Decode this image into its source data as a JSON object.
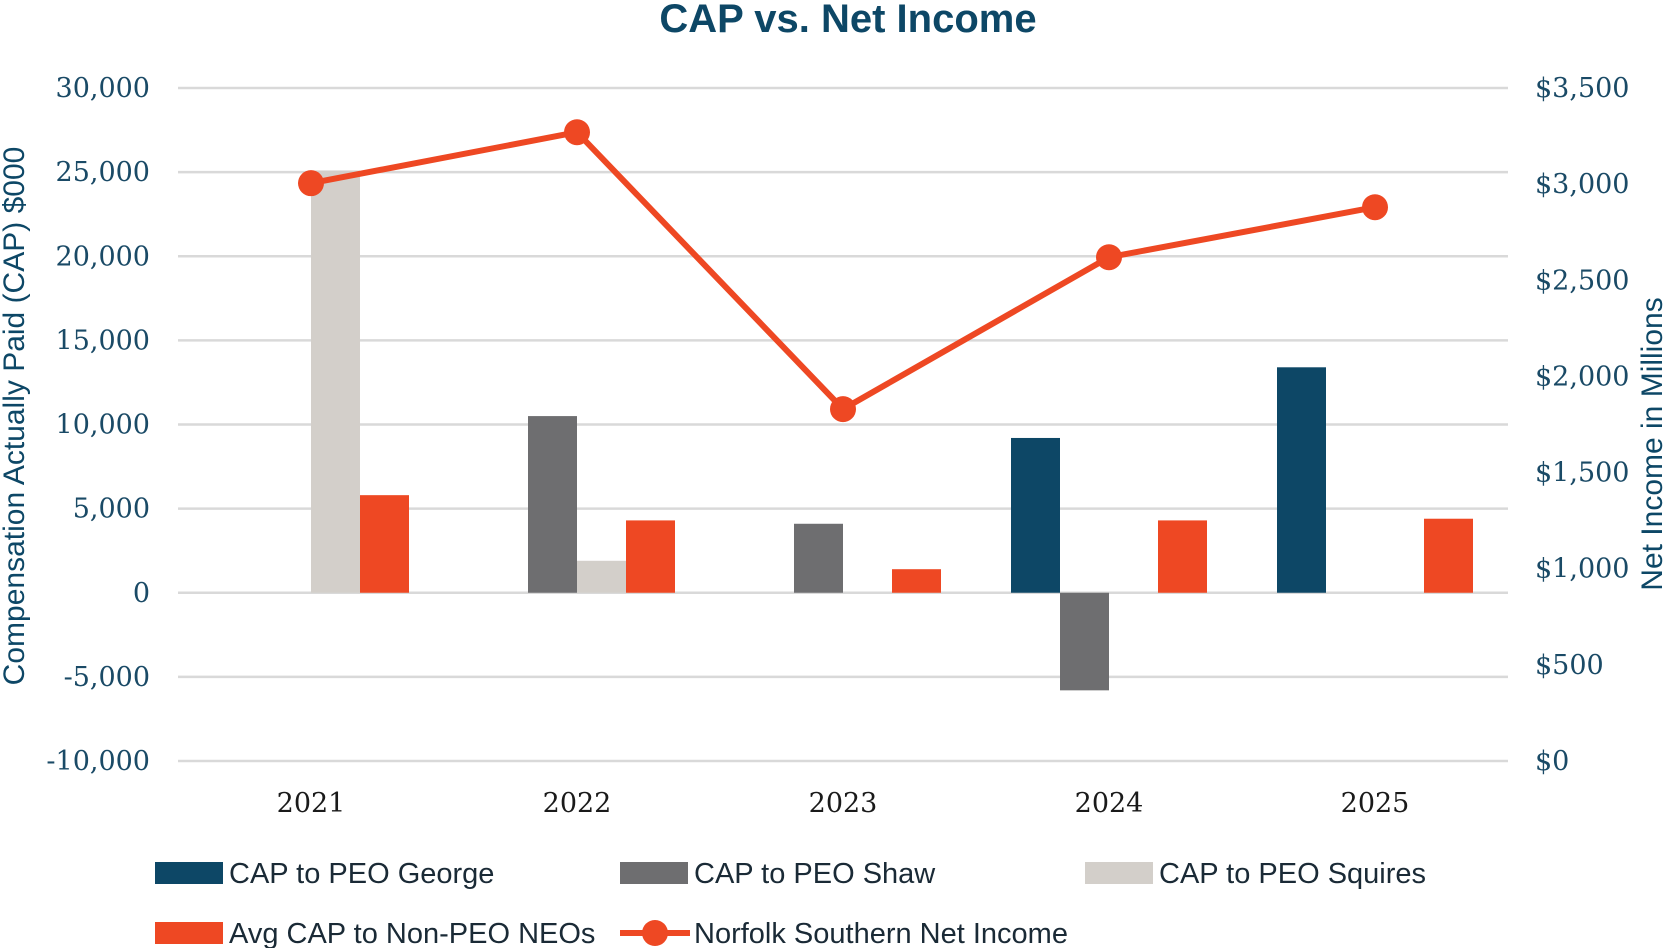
{
  "chart_data": {
    "type": "bar",
    "title": "CAP vs. Net Income",
    "categories": [
      "2021",
      "2022",
      "2023",
      "2024",
      "2025"
    ],
    "ylabel": "Compensation Actually Paid (CAP) $000",
    "y2label": "Net Income in Millions",
    "ylim": [
      -10000,
      30000
    ],
    "y2lim": [
      0,
      3500
    ],
    "yticks": [
      "30,000",
      "25,000",
      "20,000",
      "15,000",
      "10,000",
      "5,000",
      "0",
      "-5,000",
      "-10,000"
    ],
    "y2ticks": [
      "$3,500",
      "$3,000",
      "$2,500",
      "$2,000",
      "$1,500",
      "$1,000",
      "$500",
      "$0"
    ],
    "series": [
      {
        "name": "CAP to PEO George",
        "kind": "bar",
        "color": "#0d4766",
        "values": [
          null,
          null,
          null,
          9200,
          13400
        ]
      },
      {
        "name": "CAP to PEO Shaw",
        "kind": "bar",
        "color": "#6e6e70",
        "values": [
          null,
          10500,
          4100,
          -5800,
          null
        ]
      },
      {
        "name": "CAP to PEO Squires",
        "kind": "bar",
        "color": "#d3cfca",
        "values": [
          25100,
          1900,
          null,
          null,
          null
        ]
      },
      {
        "name": "Avg CAP to Non-PEO NEOs",
        "kind": "bar",
        "color": "#ee4823",
        "values": [
          5800,
          4300,
          1400,
          4300,
          4400
        ]
      },
      {
        "name": "Norfolk Southern Net Income",
        "kind": "line",
        "axis": "right",
        "color": "#ee4823",
        "values": [
          3005,
          3270,
          1830,
          2620,
          2880
        ]
      }
    ],
    "legend": "bottom"
  }
}
